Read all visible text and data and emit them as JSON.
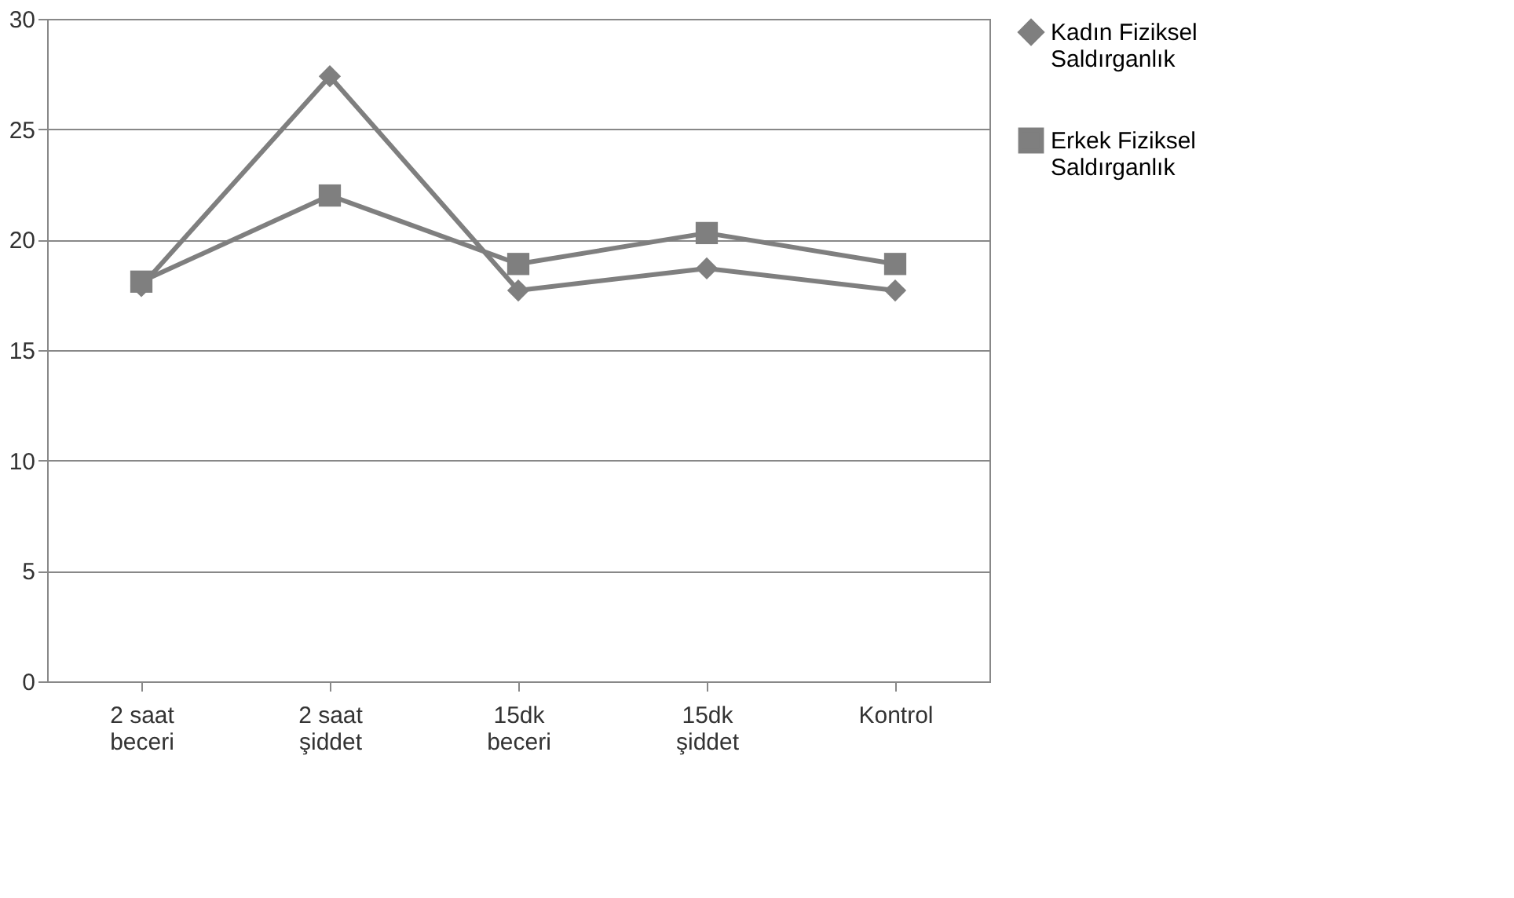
{
  "chart_data": {
    "type": "line",
    "categories": [
      "2 saat beceri",
      "2 saat şiddet",
      "15dk beceri",
      "15dk şiddet",
      "Kontrol"
    ],
    "series": [
      {
        "name": "Kadın Fiziksel Saldırganlık",
        "color": "#7f7f7f",
        "marker": "diamond",
        "values": [
          17.9,
          27.4,
          17.7,
          18.7,
          17.7
        ]
      },
      {
        "name": "Erkek Fiziksel Saldırganlık",
        "color": "#7f7f7f",
        "marker": "square",
        "values": [
          18.1,
          22.0,
          18.9,
          20.3,
          18.9
        ]
      }
    ],
    "ylim": [
      0,
      30
    ],
    "yticks": [
      0,
      5,
      10,
      15,
      20,
      25,
      30
    ],
    "grid": "y",
    "legend": "right",
    "line_style": "solid"
  }
}
